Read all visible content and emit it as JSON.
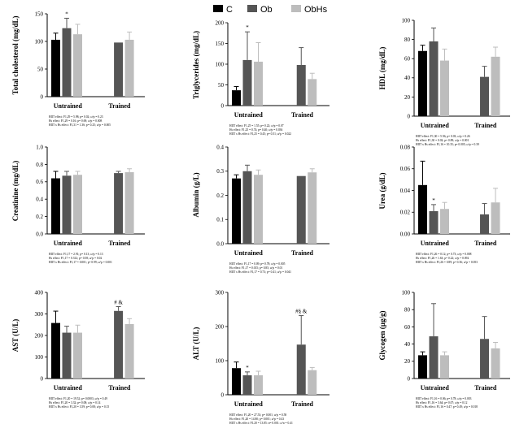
{
  "legend": {
    "items": [
      {
        "label": "C",
        "color": "#000000"
      },
      {
        "label": "Ob",
        "color": "#555555"
      },
      {
        "label": "ObHs",
        "color": "#bdbdbd"
      }
    ]
  },
  "chart_data": [
    {
      "type": "bar",
      "ylabel": "Total cholesterol (mg/dL)",
      "ylim": [
        0,
        150
      ],
      "yticks": [
        "0",
        "50",
        "100",
        "150"
      ],
      "ytick_values": [
        0,
        50,
        100,
        150
      ],
      "groups": [
        "Untrained",
        "Trained"
      ],
      "series": [
        {
          "name": "C",
          "values": [
            103,
            null
          ],
          "errors": [
            12,
            null
          ]
        },
        {
          "name": "Ob",
          "values": [
            124,
            98
          ],
          "errors": [
            18,
            null
          ]
        },
        {
          "name": "ObHs",
          "values": [
            113,
            103
          ],
          "errors": [
            18,
            14
          ]
        }
      ],
      "annotations": [
        {
          "group": 0,
          "series": 1,
          "text": "*"
        }
      ],
      "stats": [
        "HIIT effect: F1,29 = 5.98; p= 0.02; ω²p = 0.23",
        "Hs effect: F1,29 = 0.16; p= 0.69; ω²p = 0.008",
        "HIIT x Hs effect: F1,31 = 1.36; p= 0.25; ω²p = 0.005"
      ]
    },
    {
      "type": "bar",
      "ylabel": "Triglycerides (mg/dL)",
      "ylim": [
        0,
        200
      ],
      "yticks": [
        "0",
        "50",
        "100",
        "150",
        "200"
      ],
      "ytick_values": [
        0,
        50,
        100,
        150,
        200
      ],
      "groups": [
        "Untrained",
        "Trained"
      ],
      "series": [
        {
          "name": "C",
          "values": [
            37,
            null
          ],
          "errors": [
            9,
            null
          ]
        },
        {
          "name": "Ob",
          "values": [
            110,
            98
          ],
          "errors": [
            68,
            42
          ]
        },
        {
          "name": "ObHs",
          "values": [
            106,
            64
          ],
          "errors": [
            46,
            14
          ]
        }
      ],
      "annotations": [
        {
          "group": 0,
          "series": 1,
          "text": "*"
        }
      ],
      "stats": [
        "HIIT effect: F1,25 = 1.55; p= 0.22; ω²p = 0.07",
        "Hs effect: F1,25 = 0.74; p= 0.40; ω²p = 0.036",
        "HIIT x Hs effect: F1,25 = 0.45; p= 0.51; ω²p = 0.022"
      ]
    },
    {
      "type": "bar",
      "ylabel": "HDL (mg/dL)",
      "ylim": [
        0,
        100
      ],
      "yticks": [
        "0",
        "20",
        "40",
        "60",
        "80",
        "100"
      ],
      "ytick_values": [
        0,
        20,
        40,
        60,
        80,
        100
      ],
      "groups": [
        "Untrained",
        "Trained"
      ],
      "series": [
        {
          "name": "C",
          "values": [
            68,
            null
          ],
          "errors": [
            6,
            null
          ]
        },
        {
          "name": "Ob",
          "values": [
            78,
            41
          ],
          "errors": [
            14,
            11
          ]
        },
        {
          "name": "ObHs",
          "values": [
            58,
            62
          ],
          "errors": [
            12,
            10
          ]
        }
      ],
      "annotations": [],
      "stats": [
        "HIIT effect: F1,30 = 5.56; p= 0.03; ω²p = 0.26",
        "Hs effect: F1,30 = 0.02; p= 0.89; ω²p = 0.001",
        "HIIT x Hs effect: F1,16 = 10.35; p= 0.005; ω²p = 0.39"
      ]
    },
    {
      "type": "bar",
      "ylabel": "Creatinine (mg/dL)",
      "ylim": [
        0,
        1.0
      ],
      "yticks": [
        "0.0",
        "0.2",
        "0.4",
        "0.6",
        "0.8",
        "1.0"
      ],
      "ytick_values": [
        0,
        0.2,
        0.4,
        0.6,
        0.8,
        1.0
      ],
      "groups": [
        "Untrained",
        "Trained"
      ],
      "series": [
        {
          "name": "C",
          "values": [
            0.64,
            null
          ],
          "errors": [
            0.08,
            null
          ]
        },
        {
          "name": "Ob",
          "values": [
            0.67,
            0.7
          ],
          "errors": [
            0.05,
            0.02
          ]
        },
        {
          "name": "ObHs",
          "values": [
            0.68,
            0.71
          ],
          "errors": [
            0.04,
            0.04
          ]
        }
      ],
      "annotations": [],
      "stats": [
        "HIIT effect: F1,17 = 2.91; p= 0.13; ω²p = 0.13",
        "Hs effect: F1,17 = 0.312; p= 0.58; ω²p = 0.02",
        "HIIT x Hs effect: F1,17 = 0.001; p= 0.99; ω²p = 0.001"
      ]
    },
    {
      "type": "bar",
      "ylabel": "Albumin (g/L)",
      "ylim": [
        0,
        0.4
      ],
      "yticks": [
        "0.0",
        "0.1",
        "0.2",
        "0.3",
        "0.4"
      ],
      "ytick_values": [
        0,
        0.1,
        0.2,
        0.3,
        0.4
      ],
      "groups": [
        "Untrained",
        "Trained"
      ],
      "series": [
        {
          "name": "C",
          "values": [
            0.27,
            null
          ],
          "errors": [
            0.015,
            null
          ]
        },
        {
          "name": "Ob",
          "values": [
            0.3,
            0.28
          ],
          "errors": [
            0.025,
            null
          ]
        },
        {
          "name": "ObHs",
          "values": [
            0.285,
            0.295
          ],
          "errors": [
            0.02,
            0.015
          ]
        }
      ],
      "annotations": [],
      "stats": [
        "HIIT effect: F1,17 = 0.09; p= 0.78; ω²p = 0.005",
        "Hs effect: F1,17 = 0.015; p= 0.85; ω²p = 0.01",
        "HIIT x Hs effect: F1,17 = 0.73; p= 0.41; ω²p = 0.041"
      ]
    },
    {
      "type": "bar",
      "ylabel": "Urea (g/dL)",
      "ylim": [
        0,
        0.08
      ],
      "yticks": [
        "0.00",
        "0.02",
        "0.04",
        "0.06",
        "0.08"
      ],
      "ytick_values": [
        0,
        0.02,
        0.04,
        0.06,
        0.08
      ],
      "groups": [
        "Untrained",
        "Trained"
      ],
      "series": [
        {
          "name": "C",
          "values": [
            0.045,
            null
          ],
          "errors": [
            0.022,
            null
          ]
        },
        {
          "name": "Ob",
          "values": [
            0.021,
            0.018
          ],
          "errors": [
            0.006,
            0.01
          ]
        },
        {
          "name": "ObHs",
          "values": [
            0.023,
            0.029
          ],
          "errors": [
            0.006,
            0.013
          ]
        }
      ],
      "annotations": [
        {
          "group": 0,
          "series": 1,
          "text": "*"
        }
      ],
      "stats": [
        "HIIT effect: F1,26 = 0.12; p= 0.73; ω²p = 0.008",
        "Hs effect: F1,26 = 1.63; p= 0.22; ω²p = 0.092",
        "HIIT x Hs effect: F1,26 = 0.89; p= 0.36; ω²p = 0.053"
      ]
    },
    {
      "type": "bar",
      "ylabel": "AST (U/L)",
      "ylim": [
        0,
        400
      ],
      "yticks": [
        "0",
        "100",
        "200",
        "300",
        "400"
      ],
      "ytick_values": [
        0,
        100,
        200,
        300,
        400
      ],
      "groups": [
        "Untrained",
        "Trained"
      ],
      "series": [
        {
          "name": "C",
          "values": [
            258,
            null
          ],
          "errors": [
            55,
            null
          ]
        },
        {
          "name": "Ob",
          "values": [
            213,
            314
          ],
          "errors": [
            30,
            20
          ]
        },
        {
          "name": "ObHs",
          "values": [
            213,
            253
          ],
          "errors": [
            35,
            25
          ]
        }
      ],
      "annotations": [
        {
          "group": 1,
          "series": 1,
          "text": "# &"
        }
      ],
      "stats": [
        "HIIT effect: F1,20 = 19.52; p= 0.0003; ω²p = 0.49",
        "Hs effect: F1,20 = 3.32; p= 0.08; ω²p = 0.14",
        "HIIT x Hs effect: F1,20 = 3.59; p= 0.08; ω²p = 0.15"
      ]
    },
    {
      "type": "bar",
      "ylabel": "ALT (U/L)",
      "ylim": [
        0,
        300
      ],
      "yticks": [
        "0",
        "100",
        "200",
        "300"
      ],
      "ytick_values": [
        0,
        100,
        200,
        300
      ],
      "groups": [
        "Untrained",
        "Trained"
      ],
      "series": [
        {
          "name": "C",
          "values": [
            78,
            null
          ],
          "errors": [
            18,
            null
          ]
        },
        {
          "name": "Ob",
          "values": [
            57,
            147
          ],
          "errors": [
            10,
            85
          ]
        },
        {
          "name": "ObHs",
          "values": [
            57,
            72
          ],
          "errors": [
            12,
            8
          ]
        }
      ],
      "annotations": [
        {
          "group": 0,
          "series": 1,
          "text": "*"
        },
        {
          "group": 1,
          "series": 1,
          "text": "#§ &"
        }
      ],
      "stats": [
        "HIIT effect: F1,20 = 27.53; p= 0.001; ω²p = 0.58",
        "Hs effect: F1,20 = 14.80; p= 0.001; ω²p = 0.43",
        "HIIT x Hs effect: F1,20 = 13.85; p= 0.001; ω²p = 0.41"
      ]
    },
    {
      "type": "bar",
      "ylabel": "Glycogen (µg/g)",
      "ylim": [
        0,
        100
      ],
      "yticks": [
        "0",
        "20",
        "40",
        "60",
        "80",
        "100"
      ],
      "ytick_values": [
        0,
        20,
        40,
        60,
        80,
        100
      ],
      "groups": [
        "Untrained",
        "Trained"
      ],
      "series": [
        {
          "name": "C",
          "values": [
            27,
            null
          ],
          "errors": [
            4,
            null
          ]
        },
        {
          "name": "Ob",
          "values": [
            49,
            46
          ],
          "errors": [
            38,
            26
          ]
        },
        {
          "name": "ObHs",
          "values": [
            27,
            35
          ],
          "errors": [
            4,
            7
          ]
        }
      ],
      "annotations": [],
      "stats": [
        "HIIT effect: F1,16 = 0.06; p= 0.78; ω²p = 0.003",
        "Hs effect: F1,16 = 3.64; p= 0.07; ω²p = 0.12",
        "HIIT x Hs effect: F1,16 = 0.47; p= 0.49; ω²p = 0.018"
      ]
    }
  ]
}
